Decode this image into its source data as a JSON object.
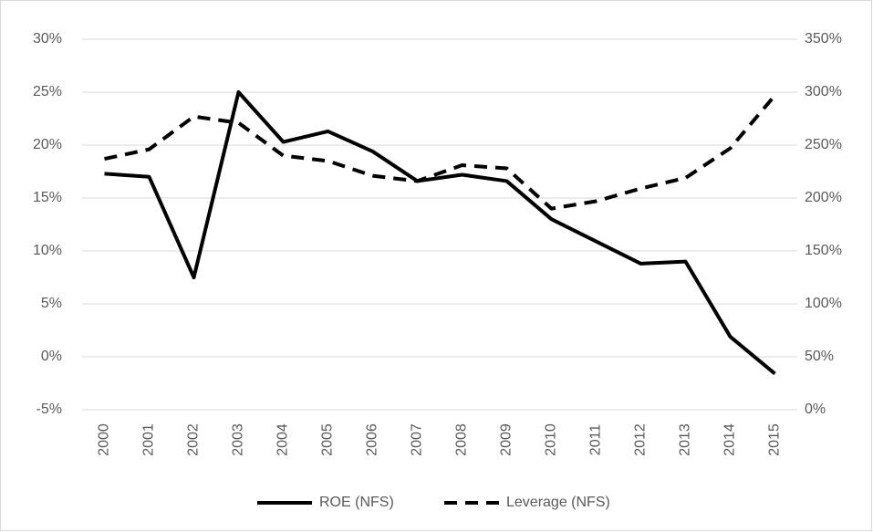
{
  "chart_data": {
    "type": "line",
    "categories": [
      "2000",
      "2001",
      "2002",
      "2003",
      "2004",
      "2005",
      "2006",
      "2007",
      "2008",
      "2009",
      "2010",
      "2011",
      "2012",
      "2013",
      "2014",
      "2015"
    ],
    "series": [
      {
        "name": "ROE (NFS)",
        "color": "#000000",
        "dash": "solid",
        "values": [
          17.3,
          17.0,
          7.5,
          25.0,
          20.3,
          21.3,
          19.4,
          16.6,
          17.2,
          16.6,
          13.0,
          10.9,
          8.8,
          9.0,
          1.9,
          -1.6
        ]
      },
      {
        "name": "Leverage (NFS)",
        "color": "#000000",
        "dash": "dashed",
        "axis": "y2",
        "values": [
          237,
          246,
          277,
          271,
          240,
          235,
          221,
          216,
          231,
          228,
          190,
          197,
          209,
          219,
          247,
          297
        ]
      }
    ],
    "ylim": [
      -5,
      30
    ],
    "yticks": [
      {
        "value": -5,
        "label": "-5%"
      },
      {
        "value": 0,
        "label": "0%"
      },
      {
        "value": 5,
        "label": "5%"
      },
      {
        "value": 10,
        "label": "10%"
      },
      {
        "value": 15,
        "label": "15%"
      },
      {
        "value": 20,
        "label": "20%"
      },
      {
        "value": 25,
        "label": "25%"
      },
      {
        "value": 30,
        "label": "30%"
      }
    ],
    "y2lim": [
      0,
      350
    ],
    "y2ticks": [
      {
        "value": 0,
        "label": "0%"
      },
      {
        "value": 50,
        "label": "50%"
      },
      {
        "value": 100,
        "label": "100%"
      },
      {
        "value": 150,
        "label": "150%"
      },
      {
        "value": 200,
        "label": "200%"
      },
      {
        "value": 250,
        "label": "250%"
      },
      {
        "value": 300,
        "label": "300%"
      },
      {
        "value": 350,
        "label": "350%"
      }
    ],
    "grid": true,
    "legend": "bottom"
  }
}
